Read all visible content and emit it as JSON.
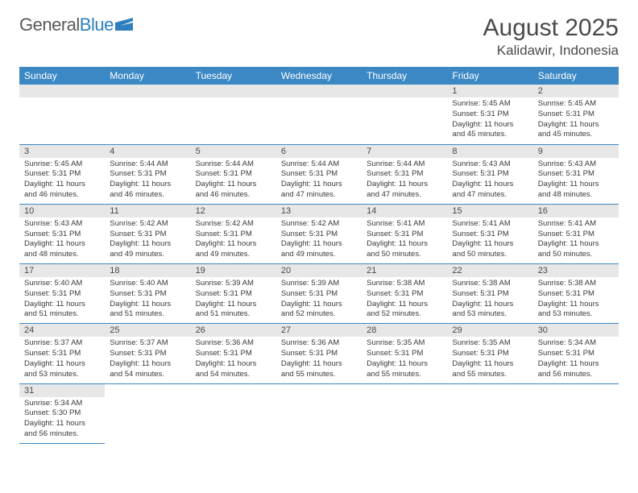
{
  "logo": {
    "text1": "General",
    "text2": "Blue"
  },
  "title": "August 2025",
  "location": "Kalidawir, Indonesia",
  "weekdays": [
    "Sunday",
    "Monday",
    "Tuesday",
    "Wednesday",
    "Thursday",
    "Friday",
    "Saturday"
  ],
  "colors": {
    "header_bg": "#3b88c4",
    "header_text": "#ffffff",
    "daynum_bg": "#e7e7e7",
    "border": "#3b88c4",
    "text": "#3a3a3a",
    "title_text": "#4a4a4a",
    "logo_gray": "#5a5a5a",
    "logo_blue": "#2d7fbf"
  },
  "typography": {
    "title_fontsize": 30,
    "location_fontsize": 17,
    "logo_fontsize": 22,
    "weekday_fontsize": 12,
    "daynum_fontsize": 11,
    "cell_fontsize": 9.5
  },
  "weeks": [
    [
      null,
      null,
      null,
      null,
      null,
      {
        "day": "1",
        "sunrise": "Sunrise: 5:45 AM",
        "sunset": "Sunset: 5:31 PM",
        "daylight": "Daylight: 11 hours and 45 minutes."
      },
      {
        "day": "2",
        "sunrise": "Sunrise: 5:45 AM",
        "sunset": "Sunset: 5:31 PM",
        "daylight": "Daylight: 11 hours and 45 minutes."
      }
    ],
    [
      {
        "day": "3",
        "sunrise": "Sunrise: 5:45 AM",
        "sunset": "Sunset: 5:31 PM",
        "daylight": "Daylight: 11 hours and 46 minutes."
      },
      {
        "day": "4",
        "sunrise": "Sunrise: 5:44 AM",
        "sunset": "Sunset: 5:31 PM",
        "daylight": "Daylight: 11 hours and 46 minutes."
      },
      {
        "day": "5",
        "sunrise": "Sunrise: 5:44 AM",
        "sunset": "Sunset: 5:31 PM",
        "daylight": "Daylight: 11 hours and 46 minutes."
      },
      {
        "day": "6",
        "sunrise": "Sunrise: 5:44 AM",
        "sunset": "Sunset: 5:31 PM",
        "daylight": "Daylight: 11 hours and 47 minutes."
      },
      {
        "day": "7",
        "sunrise": "Sunrise: 5:44 AM",
        "sunset": "Sunset: 5:31 PM",
        "daylight": "Daylight: 11 hours and 47 minutes."
      },
      {
        "day": "8",
        "sunrise": "Sunrise: 5:43 AM",
        "sunset": "Sunset: 5:31 PM",
        "daylight": "Daylight: 11 hours and 47 minutes."
      },
      {
        "day": "9",
        "sunrise": "Sunrise: 5:43 AM",
        "sunset": "Sunset: 5:31 PM",
        "daylight": "Daylight: 11 hours and 48 minutes."
      }
    ],
    [
      {
        "day": "10",
        "sunrise": "Sunrise: 5:43 AM",
        "sunset": "Sunset: 5:31 PM",
        "daylight": "Daylight: 11 hours and 48 minutes."
      },
      {
        "day": "11",
        "sunrise": "Sunrise: 5:42 AM",
        "sunset": "Sunset: 5:31 PM",
        "daylight": "Daylight: 11 hours and 49 minutes."
      },
      {
        "day": "12",
        "sunrise": "Sunrise: 5:42 AM",
        "sunset": "Sunset: 5:31 PM",
        "daylight": "Daylight: 11 hours and 49 minutes."
      },
      {
        "day": "13",
        "sunrise": "Sunrise: 5:42 AM",
        "sunset": "Sunset: 5:31 PM",
        "daylight": "Daylight: 11 hours and 49 minutes."
      },
      {
        "day": "14",
        "sunrise": "Sunrise: 5:41 AM",
        "sunset": "Sunset: 5:31 PM",
        "daylight": "Daylight: 11 hours and 50 minutes."
      },
      {
        "day": "15",
        "sunrise": "Sunrise: 5:41 AM",
        "sunset": "Sunset: 5:31 PM",
        "daylight": "Daylight: 11 hours and 50 minutes."
      },
      {
        "day": "16",
        "sunrise": "Sunrise: 5:41 AM",
        "sunset": "Sunset: 5:31 PM",
        "daylight": "Daylight: 11 hours and 50 minutes."
      }
    ],
    [
      {
        "day": "17",
        "sunrise": "Sunrise: 5:40 AM",
        "sunset": "Sunset: 5:31 PM",
        "daylight": "Daylight: 11 hours and 51 minutes."
      },
      {
        "day": "18",
        "sunrise": "Sunrise: 5:40 AM",
        "sunset": "Sunset: 5:31 PM",
        "daylight": "Daylight: 11 hours and 51 minutes."
      },
      {
        "day": "19",
        "sunrise": "Sunrise: 5:39 AM",
        "sunset": "Sunset: 5:31 PM",
        "daylight": "Daylight: 11 hours and 51 minutes."
      },
      {
        "day": "20",
        "sunrise": "Sunrise: 5:39 AM",
        "sunset": "Sunset: 5:31 PM",
        "daylight": "Daylight: 11 hours and 52 minutes."
      },
      {
        "day": "21",
        "sunrise": "Sunrise: 5:38 AM",
        "sunset": "Sunset: 5:31 PM",
        "daylight": "Daylight: 11 hours and 52 minutes."
      },
      {
        "day": "22",
        "sunrise": "Sunrise: 5:38 AM",
        "sunset": "Sunset: 5:31 PM",
        "daylight": "Daylight: 11 hours and 53 minutes."
      },
      {
        "day": "23",
        "sunrise": "Sunrise: 5:38 AM",
        "sunset": "Sunset: 5:31 PM",
        "daylight": "Daylight: 11 hours and 53 minutes."
      }
    ],
    [
      {
        "day": "24",
        "sunrise": "Sunrise: 5:37 AM",
        "sunset": "Sunset: 5:31 PM",
        "daylight": "Daylight: 11 hours and 53 minutes."
      },
      {
        "day": "25",
        "sunrise": "Sunrise: 5:37 AM",
        "sunset": "Sunset: 5:31 PM",
        "daylight": "Daylight: 11 hours and 54 minutes."
      },
      {
        "day": "26",
        "sunrise": "Sunrise: 5:36 AM",
        "sunset": "Sunset: 5:31 PM",
        "daylight": "Daylight: 11 hours and 54 minutes."
      },
      {
        "day": "27",
        "sunrise": "Sunrise: 5:36 AM",
        "sunset": "Sunset: 5:31 PM",
        "daylight": "Daylight: 11 hours and 55 minutes."
      },
      {
        "day": "28",
        "sunrise": "Sunrise: 5:35 AM",
        "sunset": "Sunset: 5:31 PM",
        "daylight": "Daylight: 11 hours and 55 minutes."
      },
      {
        "day": "29",
        "sunrise": "Sunrise: 5:35 AM",
        "sunset": "Sunset: 5:31 PM",
        "daylight": "Daylight: 11 hours and 55 minutes."
      },
      {
        "day": "30",
        "sunrise": "Sunrise: 5:34 AM",
        "sunset": "Sunset: 5:31 PM",
        "daylight": "Daylight: 11 hours and 56 minutes."
      }
    ],
    [
      {
        "day": "31",
        "sunrise": "Sunrise: 5:34 AM",
        "sunset": "Sunset: 5:30 PM",
        "daylight": "Daylight: 11 hours and 56 minutes."
      },
      null,
      null,
      null,
      null,
      null,
      null
    ]
  ]
}
